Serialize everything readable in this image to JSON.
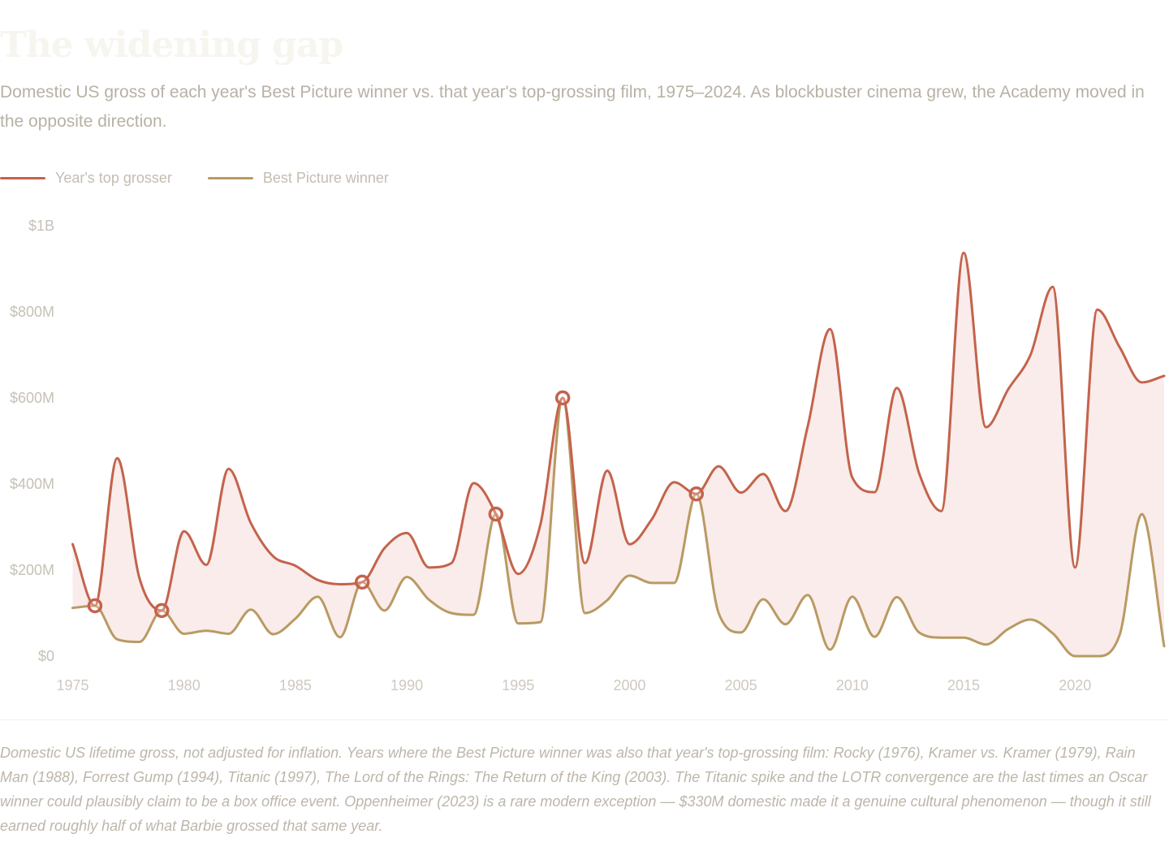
{
  "title": "The widening gap",
  "subtitle": "Domestic US gross of each year's Best Picture winner vs. that year's top-grossing film, 1975–2024. As blockbuster cinema grew, the Academy moved in the opposite direction.",
  "legend": [
    {
      "label": "Year's top grosser",
      "color": "#c4634c"
    },
    {
      "label": "Best Picture winner",
      "color": "#b99a63"
    }
  ],
  "footnote": "Domestic US lifetime gross, not adjusted for inflation. Years where the Best Picture winner was also that year's top-grossing film: Rocky (1976), Kramer vs. Kramer (1979), Rain Man (1988), Forrest Gump (1994), Titanic (1997), The Lord of the Rings: The Return of the King (2003). The Titanic spike and the LOTR convergence are the last times an Oscar winner could plausibly claim to be a box office event. Oppenheimer (2023) is a rare modern exception — $330M domestic made it a genuine cultural phenomenon — though it still earned roughly half of what Barbie grossed that same year.",
  "colors": {
    "top": "#c4634c",
    "winner": "#b99a63",
    "gap_fill": "#f9ecea"
  },
  "chart_data": {
    "type": "line",
    "title": "",
    "xlabel": "",
    "ylabel": "",
    "xlim": [
      1975,
      2024
    ],
    "ylim": [
      0,
      1000
    ],
    "value_unit": "millions USD",
    "y_ticks": [
      {
        "value": 0,
        "label": "$0"
      },
      {
        "value": 200,
        "label": "$200M"
      },
      {
        "value": 400,
        "label": "$400M"
      },
      {
        "value": 600,
        "label": "$600M"
      },
      {
        "value": 800,
        "label": "$800M"
      },
      {
        "value": 1000,
        "label": "$1B"
      }
    ],
    "x_ticks": [
      1975,
      1980,
      1985,
      1990,
      1995,
      2000,
      2005,
      2010,
      2015,
      2020
    ],
    "x": [
      1975,
      1976,
      1977,
      1978,
      1979,
      1980,
      1981,
      1982,
      1983,
      1984,
      1985,
      1986,
      1987,
      1988,
      1989,
      1990,
      1991,
      1992,
      1993,
      1994,
      1995,
      1996,
      1997,
      1998,
      1999,
      2000,
      2001,
      2002,
      2003,
      2004,
      2005,
      2006,
      2007,
      2008,
      2009,
      2010,
      2011,
      2012,
      2013,
      2014,
      2015,
      2016,
      2017,
      2018,
      2019,
      2020,
      2021,
      2022,
      2023,
      2024
    ],
    "series": [
      {
        "name": "Year's top grosser",
        "key": "top",
        "values": [
          260,
          117,
          460,
          181,
          106,
          290,
          212,
          435,
          309,
          232,
          210,
          177,
          167,
          172,
          251,
          286,
          206,
          216,
          402,
          330,
          191,
          306,
          600,
          216,
          431,
          260,
          318,
          404,
          377,
          441,
          380,
          423,
          337,
          534,
          760,
          415,
          381,
          623,
          425,
          337,
          937,
          532,
          620,
          700,
          858,
          206,
          805,
          718,
          636,
          651
        ]
      },
      {
        "name": "Best Picture winner",
        "key": "winner",
        "values": [
          112,
          117,
          39,
          33,
          106,
          52,
          59,
          52,
          108,
          51,
          87,
          138,
          44,
          172,
          106,
          184,
          131,
          100,
          96,
          330,
          76,
          79,
          600,
          100,
          130,
          187,
          170,
          170,
          377,
          100,
          55,
          132,
          74,
          142,
          15,
          138,
          45,
          137,
          55,
          43,
          43,
          27,
          63,
          85,
          53,
          0,
          0,
          49,
          330,
          23
        ]
      }
    ],
    "coincident_years": [
      1976,
      1979,
      1988,
      1994,
      1997,
      2003
    ],
    "legend_position": "top-left",
    "grid": false
  }
}
